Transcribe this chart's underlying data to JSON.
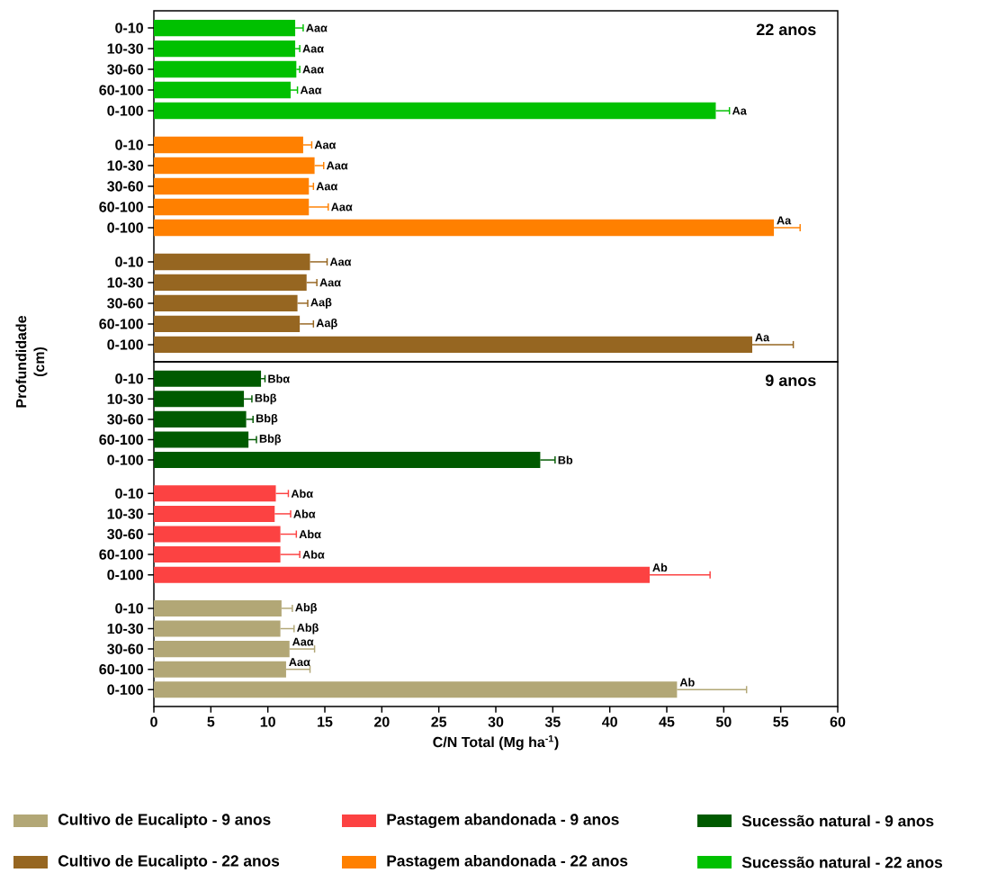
{
  "chart_data": [
    {
      "type": "bar",
      "orientation": "horizontal",
      "ylabel": "Profundidade (cm)",
      "annotations": [
        "22 anos"
      ],
      "legend": "bottom",
      "tick_labels": "y",
      "xlim": [
        0,
        60
      ],
      "categories": [
        "0-10",
        "10-30",
        "30-60",
        "60-100",
        "0-100",
        null,
        "0-10",
        "10-30",
        "30-60",
        "60-100",
        "0-100",
        null,
        "0-10",
        "10-30",
        "30-60",
        "60-100",
        "0-100"
      ],
      "series": [
        {
          "name": "Cultivo de Eucalipto - 22 anos",
          "color": "#966621",
          "values": [
            null,
            null,
            null,
            null,
            null,
            null,
            null,
            null,
            null,
            null,
            null,
            null,
            13.7,
            13.4,
            12.6,
            12.8,
            52.5
          ],
          "errors": [
            null,
            null,
            null,
            null,
            null,
            null,
            null,
            null,
            null,
            null,
            null,
            null,
            1.5,
            0.9,
            0.9,
            1.2,
            3.6
          ],
          "value_labels": [
            null,
            null,
            null,
            null,
            null,
            null,
            null,
            null,
            null,
            null,
            null,
            null,
            "Aaα",
            "Aaα",
            "Aaβ",
            "Aaβ",
            "Aa"
          ]
        },
        {
          "name": "Pastagem abandonada - 22 anos",
          "color": "#ff8000",
          "values": [
            null,
            null,
            null,
            null,
            null,
            null,
            13.1,
            14.1,
            13.6,
            13.6,
            54.4,
            null,
            null,
            null,
            null,
            null,
            null
          ],
          "errors": [
            null,
            null,
            null,
            null,
            null,
            null,
            0.75,
            0.8,
            0.4,
            1.7,
            2.3,
            null,
            null,
            null,
            null,
            null,
            null
          ],
          "value_labels": [
            null,
            null,
            null,
            null,
            null,
            null,
            "Aaα",
            "Aaα",
            "Aaα",
            "Aaα",
            "Aa",
            null,
            null,
            null,
            null,
            null,
            null
          ]
        },
        {
          "name": "Sucessão natural - 22 anos",
          "color": "#00c000",
          "values": [
            12.4,
            12.4,
            12.5,
            12.0,
            49.3,
            null,
            null,
            null,
            null,
            null,
            null,
            null,
            null,
            null,
            null,
            null,
            null
          ],
          "errors": [
            0.7,
            0.4,
            0.3,
            0.6,
            1.2,
            null,
            null,
            null,
            null,
            null,
            null,
            null,
            null,
            null,
            null,
            null,
            null
          ],
          "value_labels": [
            "Aaα",
            "Aaα",
            "Aaα",
            "Aaα",
            "Aa",
            null,
            null,
            null,
            null,
            null,
            null,
            null,
            null,
            null,
            null,
            null,
            null
          ]
        }
      ]
    },
    {
      "type": "bar",
      "orientation": "horizontal",
      "xlabel": "C/N Total (Mg ha$^{-1}$)",
      "annotations": [
        "9 anos"
      ],
      "legend": "bottom",
      "xlim": [
        0,
        60
      ],
      "xticks": [
        0,
        5,
        10,
        15,
        20,
        25,
        30,
        35,
        40,
        45,
        50,
        55,
        60
      ],
      "categories": [
        "0-10",
        "10-30",
        "30-60",
        "60-100",
        "0-100",
        null,
        "0-10",
        "10-30",
        "30-60",
        "60-100",
        "0-100",
        null,
        "0-10",
        "10-30",
        "30-60",
        "60-100",
        "0-100"
      ],
      "series": [
        {
          "name": "Cultivo de Eucalipto - 9 anos",
          "color": "#b2a776",
          "values": [
            null,
            null,
            null,
            null,
            null,
            null,
            null,
            null,
            null,
            null,
            null,
            null,
            11.2,
            11.1,
            11.9,
            11.6,
            45.9
          ],
          "errors": [
            null,
            null,
            null,
            null,
            null,
            null,
            null,
            null,
            null,
            null,
            null,
            null,
            0.95,
            1.2,
            2.2,
            2.1,
            6.1
          ],
          "value_labels": [
            null,
            null,
            null,
            null,
            null,
            null,
            null,
            null,
            null,
            null,
            null,
            null,
            "Abβ",
            "Abβ",
            "Aaα",
            "Aaα",
            "Ab"
          ]
        },
        {
          "name": "Pastagem abandonada - 9 anos",
          "color": "#fc4242",
          "values": [
            null,
            null,
            null,
            null,
            null,
            null,
            10.7,
            10.6,
            11.1,
            11.1,
            43.5,
            null,
            null,
            null,
            null,
            null,
            null
          ],
          "errors": [
            null,
            null,
            null,
            null,
            null,
            null,
            1.1,
            1.4,
            1.4,
            1.7,
            5.3,
            null,
            null,
            null,
            null,
            null,
            null
          ],
          "value_labels": [
            null,
            null,
            null,
            null,
            null,
            null,
            "Abα",
            "Abα",
            "Abα",
            "Abα",
            "Ab",
            null,
            null,
            null,
            null,
            null,
            null
          ]
        },
        {
          "name": "Sucessão natural - 9 anos",
          "color": "#005a00",
          "values": [
            9.4,
            7.9,
            8.1,
            8.3,
            33.9,
            null,
            null,
            null,
            null,
            null,
            null,
            null,
            null,
            null,
            null,
            null,
            null
          ],
          "errors": [
            0.35,
            0.7,
            0.6,
            0.7,
            1.3,
            null,
            null,
            null,
            null,
            null,
            null,
            null,
            null,
            null,
            null,
            null,
            null
          ],
          "value_labels": [
            "Bbα",
            "Bbβ",
            "Bbβ",
            "Bbβ",
            "Bb",
            null,
            null,
            null,
            null,
            null,
            null,
            null,
            null,
            null,
            null,
            null,
            null
          ]
        }
      ]
    }
  ]
}
